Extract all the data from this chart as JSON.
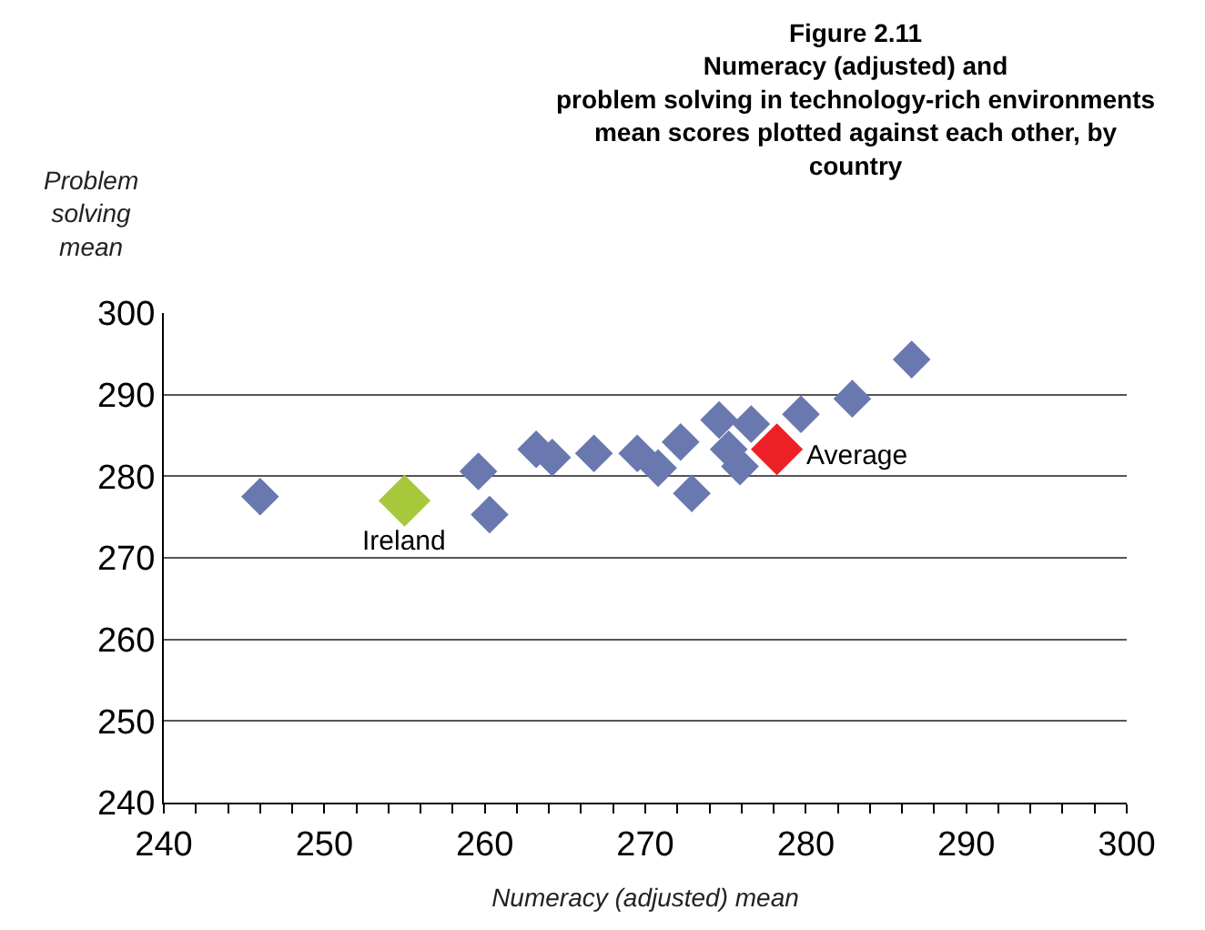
{
  "chart_data": {
    "type": "scatter",
    "title": "Figure 2.11\nNumeracy (adjusted) and\nproblem solving in technology-rich environments\nmean scores plotted against each other, by\ncountry",
    "xlabel": "Numeracy (adjusted) mean",
    "ylabel": "Problem\nsolving\nmean",
    "series": [
      {
        "color": "#6a78b0",
        "x": [
          246.0,
          259.6,
          260.3,
          263.2,
          264.2,
          266.8,
          269.5,
          270.8,
          272.2,
          272.9,
          274.6,
          275.2,
          275.9,
          276.6,
          279.7,
          282.9,
          286.6
        ],
        "values": [
          277.5,
          280.6,
          275.3,
          283.3,
          282.3,
          282.8,
          282.8,
          281.0,
          284.2,
          277.9,
          286.9,
          283.3,
          281.2,
          286.4,
          287.6,
          289.5,
          294.3
        ]
      },
      {
        "color": "#a8c83c",
        "x": [
          255.0
        ],
        "values": [
          277.0
        ]
      },
      {
        "color": "#ec2027",
        "x": [
          278.2
        ],
        "values": [
          283.3
        ]
      }
    ],
    "annotations": [
      {
        "text": "Ireland",
        "x": 255.0,
        "y": 277.0
      },
      {
        "text": "Average",
        "x": 278.2,
        "y": 283.3
      }
    ],
    "xlim": [
      240,
      300
    ],
    "xticks": [
      240,
      {
        "value": 242,
        "label": null
      },
      {
        "value": 244,
        "label": null
      },
      {
        "value": 246,
        "label": null
      },
      {
        "value": 248,
        "label": null
      },
      250,
      {
        "value": 252,
        "label": null
      },
      {
        "value": 254,
        "label": null
      },
      {
        "value": 256,
        "label": null
      },
      {
        "value": 258,
        "label": null
      },
      260,
      {
        "value": 262,
        "label": null
      },
      {
        "value": 264,
        "label": null
      },
      {
        "value": 266,
        "label": null
      },
      {
        "value": 268,
        "label": null
      },
      270,
      {
        "value": 272,
        "label": null
      },
      {
        "value": 274,
        "label": null
      },
      {
        "value": 276,
        "label": null
      },
      {
        "value": 278,
        "label": null
      },
      280,
      {
        "value": 282,
        "label": null
      },
      {
        "value": 284,
        "label": null
      },
      {
        "value": 286,
        "label": null
      },
      {
        "value": 288,
        "label": null
      },
      290,
      {
        "value": 292,
        "label": null
      },
      {
        "value": 294,
        "label": null
      },
      {
        "value": 296,
        "label": null
      },
      {
        "value": 298,
        "label": null
      },
      300
    ],
    "ylim": [
      240,
      300
    ],
    "yticks": [
      240,
      250,
      260,
      270,
      280,
      290,
      300
    ],
    "grid": "y",
    "marker": "diamond"
  }
}
